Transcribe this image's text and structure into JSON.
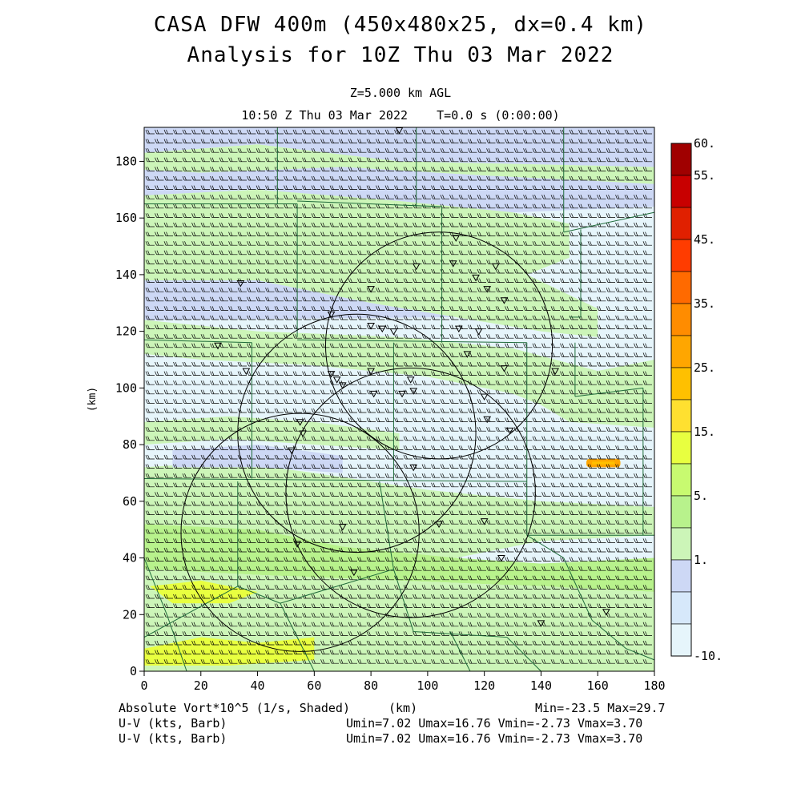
{
  "header": {
    "title_line1": "CASA DFW 400m (450x480x25, dx=0.4 km)",
    "title_line2": "Analysis for 10Z Thu 03 Mar 2022",
    "level": "Z=5.000 km AGL",
    "valid_time": "10:50 Z Thu 03 Mar 2022    T=0.0 s (0:00:00)"
  },
  "footer": {
    "field_label": "Absolute Vort*10^5 (1/s, Shaded)",
    "x_unit": "(km)",
    "minmax": "Min=-23.5 Max=29.7",
    "barb1_label": "U-V (kts, Barb)",
    "barb1_stats": "Umin=7.02 Umax=16.76 Vmin=-2.73 Vmax=3.70",
    "barb2_label": "U-V (kts, Barb)",
    "barb2_stats": "Umin=7.02 Umax=16.76 Vmin=-2.73 Vmax=3.70"
  },
  "chart_data": {
    "type": "heatmap",
    "field": "Absolute Vorticity x10^5 (1/s)",
    "xlabel": "(km)",
    "ylabel": "(km)",
    "xlim": [
      0,
      180
    ],
    "ylim": [
      0,
      192
    ],
    "x_ticks": [
      0,
      20,
      40,
      60,
      80,
      100,
      120,
      140,
      160,
      180
    ],
    "y_ticks": [
      0,
      20,
      40,
      60,
      80,
      100,
      120,
      140,
      160,
      180
    ],
    "colorbar": {
      "labels": [
        "60.",
        "55.",
        "45.",
        "35.",
        "25.",
        "15.",
        "5.",
        "1.",
        "-10."
      ],
      "colors": [
        "#a00000",
        "#c80000",
        "#e02000",
        "#ff3c00",
        "#ff6a00",
        "#ff8c00",
        "#ffa600",
        "#ffc000",
        "#ffe030",
        "#e8ff40",
        "#c8fa70",
        "#b8f28c",
        "#ccf5b8",
        "#cdd8f5",
        "#d6e8fa",
        "#e6f5fb"
      ]
    },
    "radar_circles": [
      {
        "cx": 104,
        "cy": 115,
        "r": 40
      },
      {
        "cx": 75,
        "cy": 84,
        "r": 42
      },
      {
        "cx": 94,
        "cy": 63,
        "r": 44
      },
      {
        "cx": 55,
        "cy": 49,
        "r": 42
      }
    ],
    "stations": [
      [
        90,
        191
      ],
      [
        110,
        153
      ],
      [
        34,
        137
      ],
      [
        96,
        143
      ],
      [
        109,
        144
      ],
      [
        124,
        143
      ],
      [
        80,
        135
      ],
      [
        117,
        139
      ],
      [
        121,
        135
      ],
      [
        127,
        131
      ],
      [
        66,
        126
      ],
      [
        80,
        122
      ],
      [
        84,
        121
      ],
      [
        88,
        120
      ],
      [
        111,
        121
      ],
      [
        118,
        120
      ],
      [
        26,
        115
      ],
      [
        114,
        112
      ],
      [
        36,
        106
      ],
      [
        66,
        105
      ],
      [
        80,
        106
      ],
      [
        68,
        103
      ],
      [
        70,
        101
      ],
      [
        94,
        103
      ],
      [
        127,
        107
      ],
      [
        145,
        106
      ],
      [
        81,
        98
      ],
      [
        91,
        98
      ],
      [
        95,
        99
      ],
      [
        120,
        97
      ],
      [
        121,
        89
      ],
      [
        129,
        85
      ],
      [
        55,
        88
      ],
      [
        56,
        84
      ],
      [
        52,
        78
      ],
      [
        95,
        72
      ],
      [
        70,
        51
      ],
      [
        104,
        52
      ],
      [
        120,
        53
      ],
      [
        54,
        45
      ],
      [
        126,
        40
      ],
      [
        74,
        35
      ],
      [
        140,
        17
      ],
      [
        163,
        21
      ]
    ],
    "wind_barbs": {
      "u_kts": [
        7.02,
        16.76
      ],
      "v_kts": [
        -2.73,
        3.7
      ]
    },
    "stats": {
      "min": -23.5,
      "max": 29.7
    }
  }
}
